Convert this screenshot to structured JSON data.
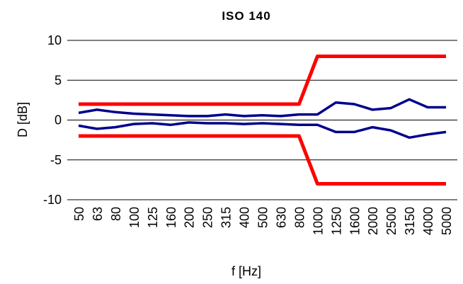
{
  "chart_data": {
    "type": "line",
    "title": "ISO 140",
    "xlabel": "f [Hz]",
    "ylabel": "D [dB]",
    "categories": [
      "50",
      "63",
      "80",
      "100",
      "125",
      "160",
      "200",
      "250",
      "315",
      "400",
      "500",
      "630",
      "800",
      "1000",
      "1250",
      "1600",
      "2000",
      "2500",
      "3150",
      "4000",
      "5000"
    ],
    "ylim": [
      -10,
      10
    ],
    "yticks": [
      10,
      5,
      0,
      -5,
      -10
    ],
    "ytick_labels": [
      "10",
      "5",
      "0",
      "-5",
      "-10"
    ],
    "grid": "horizontal",
    "legend": "none",
    "series": [
      {
        "color": "#ff0000",
        "values": [
          2,
          2,
          2,
          2,
          2,
          2,
          2,
          2,
          2,
          2,
          2,
          2,
          2,
          8,
          8,
          8,
          8,
          8,
          8,
          8,
          8
        ]
      },
      {
        "color": "#ff0000",
        "values": [
          -2,
          -2,
          -2,
          -2,
          -2,
          -2,
          -2,
          -2,
          -2,
          -2,
          -2,
          -2,
          -2,
          -8,
          -8,
          -8,
          -8,
          -8,
          -8,
          -8,
          -8
        ]
      },
      {
        "color": "#00008b",
        "values": [
          0.9,
          1.3,
          1.0,
          0.8,
          0.7,
          0.6,
          0.5,
          0.5,
          0.7,
          0.5,
          0.6,
          0.5,
          0.7,
          0.7,
          2.2,
          2.0,
          1.3,
          1.5,
          2.6,
          1.6,
          1.6
        ]
      },
      {
        "color": "#00008b",
        "values": [
          -0.7,
          -1.1,
          -0.9,
          -0.5,
          -0.4,
          -0.6,
          -0.3,
          -0.4,
          -0.4,
          -0.5,
          -0.4,
          -0.5,
          -0.6,
          -0.6,
          -1.5,
          -1.5,
          -0.9,
          -1.3,
          -2.2,
          -1.8,
          -1.5
        ]
      }
    ]
  }
}
